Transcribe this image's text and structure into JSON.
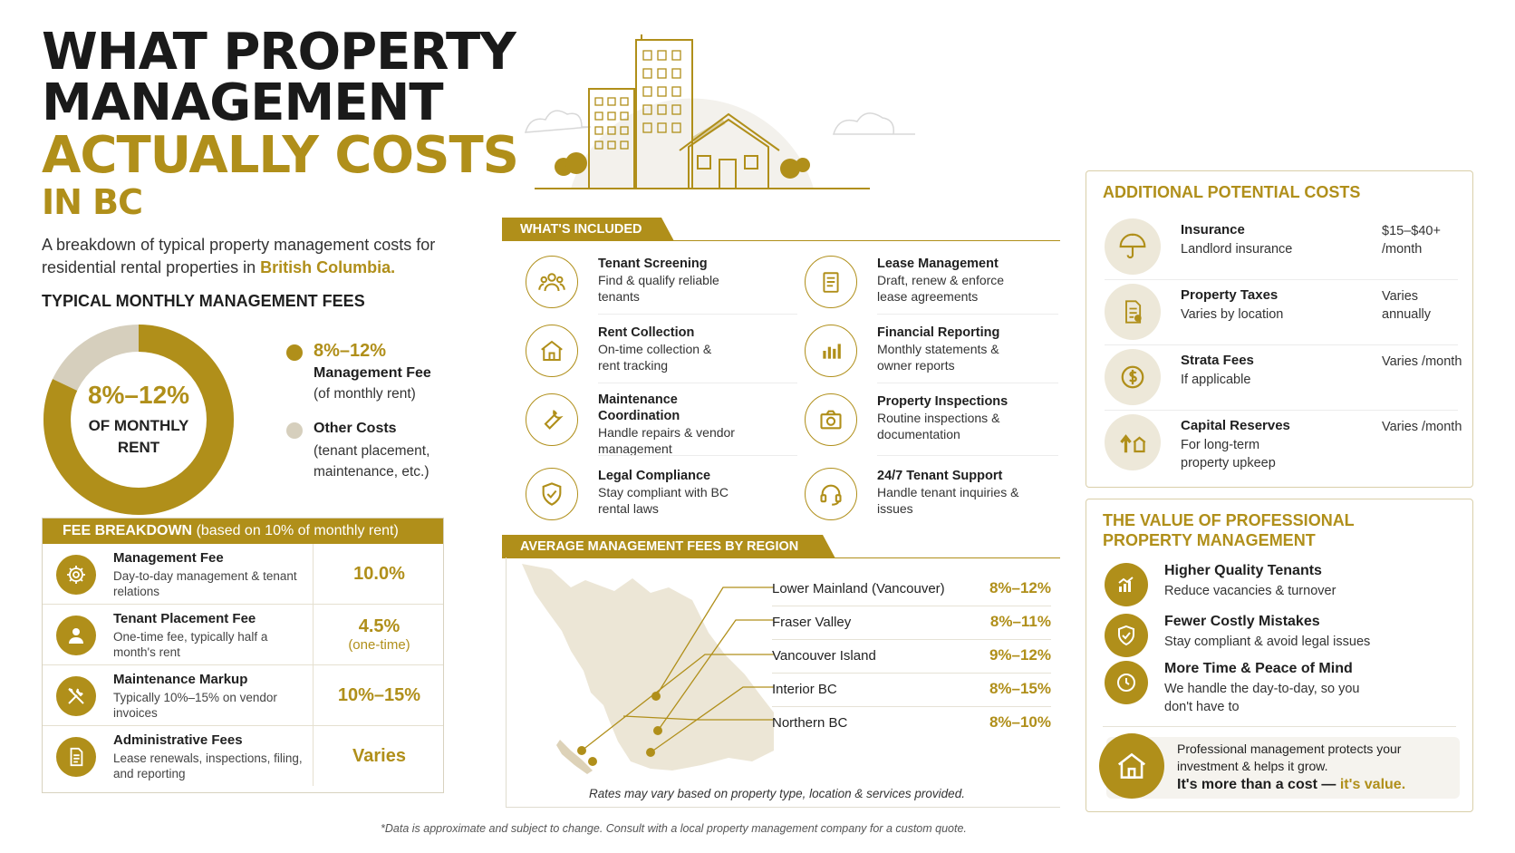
{
  "title": {
    "line1": "WHAT PROPERTY",
    "line2": "MANAGEMENT",
    "line3": "ACTUALLY COSTS",
    "line4": "IN BC"
  },
  "subtitle": {
    "text": "A breakdown of typical property management costs for residential rental properties in",
    "highlight": "British Columbia."
  },
  "monthly_fees": {
    "heading": "TYPICAL MONTHLY MANAGEMENT FEES",
    "donut_center_value": "8%–12%",
    "donut_center_label_1": "OF MONTHLY",
    "donut_center_label_2": "RENT",
    "donut_share_management": 0.82,
    "legend": [
      {
        "value": "8%–12%",
        "label": "Management Fee",
        "note": "(of monthly rent)",
        "color": "#b08f1a"
      },
      {
        "label": "Other Costs",
        "note": "(tenant placement,",
        "note2": "maintenance, etc.)",
        "color": "#d6cfbd"
      }
    ]
  },
  "fee_breakdown": {
    "heading": "FEE BREAKDOWN",
    "heading_note": "(based on 10% of monthly rent)",
    "rows": [
      {
        "icon": "gear-money-icon",
        "name": "Management Fee",
        "desc": "Day-to-day management & tenant relations",
        "value": "10.0%",
        "value_note": ""
      },
      {
        "icon": "person-icon",
        "name": "Tenant Placement Fee",
        "desc": "One-time fee, typically half a month's rent",
        "value": "4.5%",
        "value_note": "(one-time)"
      },
      {
        "icon": "tools-icon",
        "name": "Maintenance Markup",
        "desc": "Typically 10%–15% on vendor invoices",
        "value": "10%–15%",
        "value_note": ""
      },
      {
        "icon": "document-icon",
        "name": "Administrative Fees",
        "desc": "Lease renewals, inspections, filing, and reporting",
        "value": "Varies",
        "value_note": ""
      }
    ]
  },
  "whats_included": {
    "heading": "WHAT'S INCLUDED",
    "items": [
      {
        "icon": "people-icon",
        "title": "Tenant Screening",
        "desc": "Find & qualify reliable tenants"
      },
      {
        "icon": "house-icon",
        "title": "Rent Collection",
        "desc": "On-time collection & rent tracking"
      },
      {
        "icon": "wrench-icon",
        "title": "Maintenance Coordination",
        "desc": "Handle repairs & vendor management"
      },
      {
        "icon": "shield-check-icon",
        "title": "Legal Compliance",
        "desc": "Stay compliant with BC rental laws"
      },
      {
        "icon": "clipboard-icon",
        "title": "Lease Management",
        "desc": "Draft, renew & enforce lease agreements"
      },
      {
        "icon": "bar-chart-icon",
        "title": "Financial Reporting",
        "desc": "Monthly statements & owner reports"
      },
      {
        "icon": "camera-icon",
        "title": "Property Inspections",
        "desc": "Routine inspections & documentation"
      },
      {
        "icon": "headset-icon",
        "title": "24/7 Tenant Support",
        "desc": "Handle tenant inquiries & issues"
      }
    ]
  },
  "regions": {
    "heading": "AVERAGE MANAGEMENT FEES BY REGION",
    "rows": [
      {
        "name": "Lower Mainland (Vancouver)",
        "value": "8%–12%"
      },
      {
        "name": "Fraser Valley",
        "value": "8%–11%"
      },
      {
        "name": "Vancouver Island",
        "value": "9%–12%"
      },
      {
        "name": "Interior BC",
        "value": "8%–15%"
      },
      {
        "name": "Northern BC",
        "value": "8%–10%"
      }
    ],
    "note": "Rates may vary based on property type, location & services provided."
  },
  "additional_costs": {
    "heading": "ADDITIONAL POTENTIAL COSTS",
    "rows": [
      {
        "icon": "umbrella-icon",
        "name": "Insurance",
        "desc": "Landlord insurance",
        "value": "$15–$40+ /month"
      },
      {
        "icon": "tax-document-icon",
        "name": "Property Taxes",
        "desc": "Varies by location",
        "value": "Varies annually"
      },
      {
        "icon": "dollar-coin-icon",
        "name": "Strata Fees",
        "desc": "If applicable",
        "value": "Varies /month"
      },
      {
        "icon": "house-arrow-icon",
        "name": "Capital Reserves",
        "desc": "For long-term property upkeep",
        "value": "Varies /month"
      }
    ]
  },
  "value": {
    "heading_1": "THE VALUE OF PROFESSIONAL",
    "heading_2": "PROPERTY MANAGEMENT",
    "rows": [
      {
        "icon": "growth-chart-icon",
        "title": "Higher Quality Tenants",
        "desc": "Reduce vacancies & turnover"
      },
      {
        "icon": "shield-check-icon",
        "title": "Fewer Costly Mistakes",
        "desc": "Stay compliant & avoid legal issues"
      },
      {
        "icon": "clock-icon",
        "title": "More Time & Peace of Mind",
        "desc": "We handle the day-to-day, so you don't have to"
      }
    ],
    "callout_text": "Professional management protects your investment & helps it grow.",
    "callout_bold": "It's more than a cost —",
    "callout_highlight": "it's value."
  },
  "footnote": "*Data is approximate and subject to change. Consult with a local property management company for a custom quote."
}
